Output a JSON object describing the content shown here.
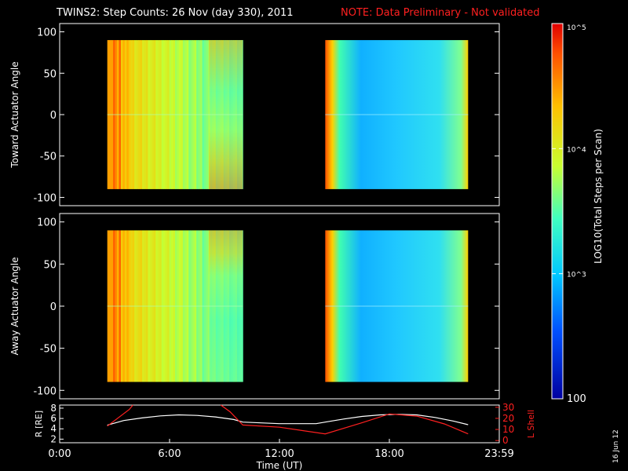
{
  "header": {
    "title": "TWINS2: Step Counts: 26 Nov (day 330), 2011",
    "note": "NOTE: Data Preliminary - Not validated"
  },
  "footer": {
    "date_stamp": "16 Jun 12"
  },
  "colors": {
    "background": "#000000",
    "axes": "#ffffff",
    "note_text": "#ff2020",
    "r_line": "#ffffff",
    "lshell_line": "#ff2020"
  },
  "chart_data": [
    {
      "type": "heatmap",
      "panel": "toward",
      "ylabel": "Toward Actuator Angle",
      "ylim": [
        -110,
        110
      ],
      "y_ticks": [
        "100",
        "50",
        "0",
        "-50",
        "-100"
      ],
      "y_tick_values": [
        100,
        50,
        0,
        -50,
        -100
      ],
      "x_range_hours": [
        0,
        24
      ],
      "data_blocks_hours": [
        [
          2.6,
          10.0
        ],
        [
          14.5,
          22.3
        ]
      ],
      "angle_range": [
        -90,
        90
      ],
      "colormap": "rainbow"
    },
    {
      "type": "heatmap",
      "panel": "away",
      "ylabel": "Away Actuator Angle",
      "ylim": [
        -110,
        110
      ],
      "y_ticks": [
        "100",
        "50",
        "0",
        "-50",
        "-100"
      ],
      "y_tick_values": [
        100,
        50,
        0,
        -50,
        -100
      ],
      "x_range_hours": [
        0,
        24
      ],
      "data_blocks_hours": [
        [
          2.6,
          10.0
        ],
        [
          14.5,
          22.3
        ]
      ],
      "angle_range": [
        -90,
        90
      ],
      "colormap": "rainbow"
    },
    {
      "type": "line",
      "panel": "orbit",
      "ylabel_left": "R [RE]",
      "ylabel_right": "L Shell",
      "xlabel": "Time (UT)",
      "x_ticks": [
        "0:00",
        "6:00",
        "12:00",
        "18:00",
        "23:59"
      ],
      "x_tick_values": [
        0,
        6,
        12,
        18,
        24
      ],
      "y_ticks_left": [
        "8",
        "6",
        "4",
        "2"
      ],
      "y_tick_values_left": [
        8,
        6,
        4,
        2
      ],
      "ylim_left": [
        1.3,
        8.6
      ],
      "y_ticks_right": [
        "30",
        "20",
        "10",
        "0"
      ],
      "y_tick_values_right": [
        30,
        20,
        10,
        0
      ],
      "ylim_right": [
        -2,
        32
      ],
      "series": [
        {
          "name": "R [RE]",
          "axis": "left",
          "x": [
            2.6,
            3.5,
            4.5,
            5.5,
            6.5,
            7.5,
            8.5,
            9.5,
            10.0,
            12.0,
            14.0,
            14.5,
            15.5,
            16.5,
            17.5,
            18.5,
            19.5,
            20.5,
            21.5,
            22.3
          ],
          "y": [
            4.7,
            5.6,
            6.1,
            6.5,
            6.7,
            6.6,
            6.3,
            5.8,
            5.3,
            5.0,
            5.0,
            5.3,
            5.9,
            6.4,
            6.7,
            6.8,
            6.7,
            6.2,
            5.5,
            4.8
          ]
        },
        {
          "name": "L Shell",
          "axis": "right",
          "segments": [
            {
              "x": [
                2.6,
                3.8,
                4.0
              ],
              "y": [
                13,
                28,
                32
              ]
            },
            {
              "x": [
                8.8,
                9.3,
                10.0,
                12.0,
                14.5,
                16.5,
                18.0,
                19.5,
                21.0,
                22.3
              ],
              "y": [
                32,
                26,
                14,
                12,
                6,
                16,
                24,
                22,
                15,
                6
              ]
            }
          ]
        }
      ]
    },
    {
      "type": "heatmap",
      "panel": "colorbar",
      "ylabel": "LOG10(Total Steps per Scan)",
      "tick_labels": [
        "100",
        "10^3",
        "10^4",
        "10^5"
      ],
      "tick_values": [
        100,
        1000,
        10000,
        100000
      ],
      "scale": "log",
      "range": [
        100,
        100000
      ]
    }
  ]
}
